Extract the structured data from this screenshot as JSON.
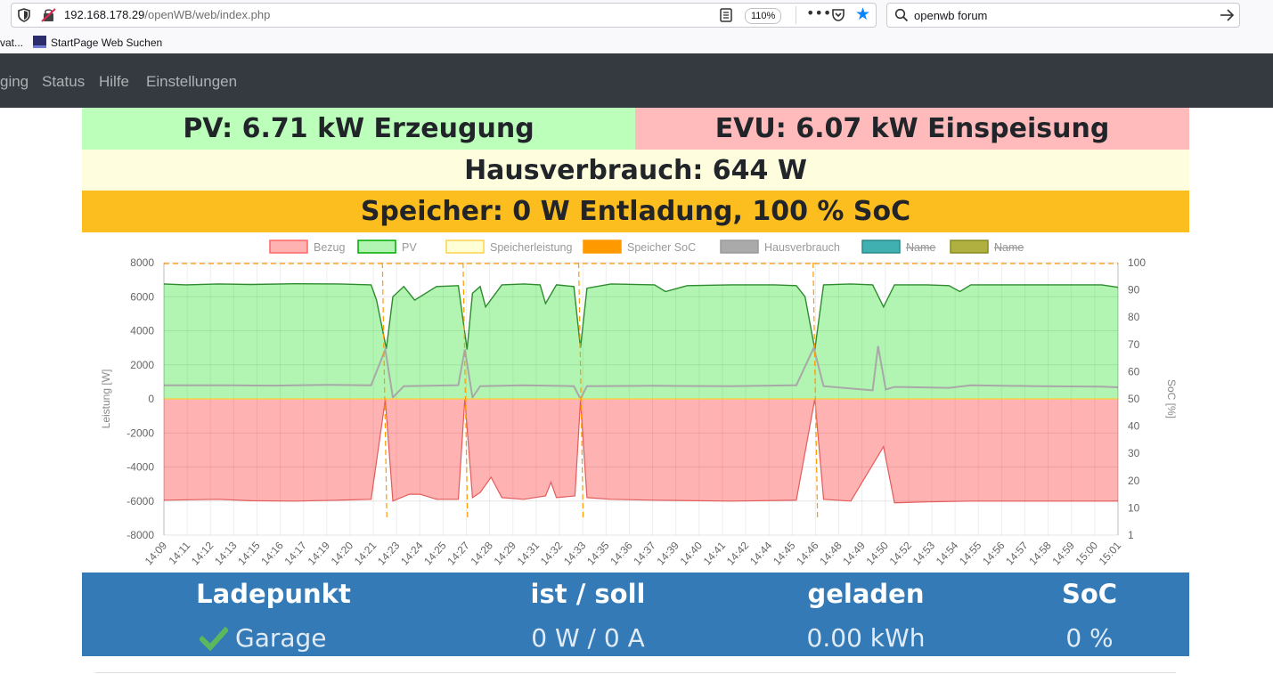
{
  "browser": {
    "url_host": "192.168.178.29",
    "url_path": "/openWB/web/index.php",
    "zoom": "110%",
    "search_text": "openwb forum",
    "bookmarks": [
      "vat...",
      "StartPage Web Suchen"
    ],
    "accent_color": "#0a84ff"
  },
  "nav": {
    "items": [
      "ging",
      "Status",
      "Hilfe",
      "Einstellungen"
    ]
  },
  "summary": {
    "pv": "PV: 6.71 kW Erzeugung",
    "evu": "EVU: 6.07 kW Einspeisung",
    "haus": "Hausverbrauch: 644 W",
    "speicher": "Speicher: 0 W Entladung, 100 % SoC",
    "colors": {
      "pv": "#bbffbb",
      "evu": "#ffbbbb",
      "haus": "#fefedf",
      "speicher": "#fcbe1e"
    }
  },
  "chart_data": {
    "type": "area",
    "legend": [
      {
        "label": "Bezug",
        "color": "#ff6666",
        "fill": "rgba(255,0,0,0.3)",
        "hidden": false
      },
      {
        "label": "PV",
        "color": "#00aa00",
        "fill": "rgba(0,220,0,0.3)",
        "hidden": false
      },
      {
        "label": "Speicherleistung",
        "color": "#fcd34d",
        "fill": "rgba(255,255,150,0.4)",
        "hidden": false
      },
      {
        "label": "Speicher SoC",
        "color": "#ff9900",
        "fill": "#ff9900",
        "hidden": false
      },
      {
        "label": "Hausverbrauch",
        "color": "#999999",
        "fill": "#aaaaaa",
        "hidden": false
      },
      {
        "label": "Name",
        "color": "#2a8a8a",
        "fill": "#40b0b0",
        "hidden": true
      },
      {
        "label": "Name",
        "color": "#8a8a20",
        "fill": "#b0b040",
        "hidden": true
      }
    ],
    "legend_position": "top",
    "ylabel": "Leistung [W]",
    "y2label": "SoC [%]",
    "ylim": [
      -8000,
      8000
    ],
    "y_ticks": [
      "8000",
      "6000",
      "4000",
      "2000",
      "0",
      "-2000",
      "-4000",
      "-6000",
      "-8000"
    ],
    "y2_ticks": [
      "100",
      "90",
      "80",
      "70",
      "60",
      "50",
      "40",
      "30",
      "20",
      "10",
      "1"
    ],
    "x_ticks": [
      "14:09",
      "14:11",
      "14:12",
      "14:13",
      "14:15",
      "14:16",
      "14:17",
      "14:19",
      "14:20",
      "14:21",
      "14:23",
      "14:24",
      "14:25",
      "14:27",
      "14:28",
      "14:29",
      "14:31",
      "14:32",
      "14:33",
      "14:35",
      "14:36",
      "14:37",
      "14:39",
      "14:40",
      "14:41",
      "14:42",
      "14:44",
      "14:45",
      "14:46",
      "14:48",
      "14:49",
      "14:50",
      "14:52",
      "14:53",
      "14:54",
      "14:55",
      "14:56",
      "14:57",
      "14:58",
      "14:59",
      "15:00",
      "15:01"
    ],
    "x_minutes": [
      0,
      53
    ],
    "series": [
      {
        "name": "PV",
        "values": [
          [
            0,
            6750
          ],
          [
            2,
            6700
          ],
          [
            5,
            6750
          ],
          [
            8,
            6720
          ],
          [
            12,
            6760
          ],
          [
            16,
            6750
          ],
          [
            19,
            6700
          ],
          [
            19.5,
            5800
          ],
          [
            20.4,
            2950
          ],
          [
            21,
            6000
          ],
          [
            22,
            6600
          ],
          [
            23,
            5800
          ],
          [
            25,
            6600
          ],
          [
            27,
            6650
          ],
          [
            27.8,
            2900
          ],
          [
            28.3,
            6200
          ],
          [
            29,
            6600
          ],
          [
            29.5,
            5400
          ],
          [
            31,
            6700
          ],
          [
            33,
            6750
          ],
          [
            34.5,
            6700
          ],
          [
            35,
            5600
          ],
          [
            36,
            6700
          ],
          [
            37.6,
            6600
          ],
          [
            38.2,
            3000
          ],
          [
            38.8,
            6500
          ],
          [
            41,
            6750
          ],
          [
            45,
            6700
          ],
          [
            46,
            6300
          ],
          [
            48,
            6650
          ],
          [
            52,
            6700
          ],
          [
            56,
            6700
          ],
          [
            58,
            6650
          ],
          [
            58.8,
            6000
          ],
          [
            59.7,
            2900
          ],
          [
            60.5,
            6700
          ],
          [
            63,
            6750
          ],
          [
            65,
            6700
          ],
          [
            66,
            5400
          ],
          [
            67,
            6700
          ],
          [
            70,
            6700
          ],
          [
            72,
            6650
          ],
          [
            73,
            6300
          ],
          [
            74,
            6700
          ],
          [
            80,
            6700
          ],
          [
            86,
            6700
          ],
          [
            87.5,
            6550
          ]
        ]
      },
      {
        "name": "Bezug",
        "values": [
          [
            0,
            -5950
          ],
          [
            5,
            -5900
          ],
          [
            8,
            -5980
          ],
          [
            12,
            -6000
          ],
          [
            16,
            -5950
          ],
          [
            19,
            -5900
          ],
          [
            20.3,
            -50
          ],
          [
            21,
            -6000
          ],
          [
            22.5,
            -5600
          ],
          [
            23.5,
            -5600
          ],
          [
            25,
            -5900
          ],
          [
            27,
            -5900
          ],
          [
            27.6,
            0
          ],
          [
            28.3,
            -5800
          ],
          [
            29,
            -5500
          ],
          [
            30,
            -4600
          ],
          [
            31,
            -5800
          ],
          [
            33,
            -5900
          ],
          [
            35,
            -5700
          ],
          [
            35.5,
            -4900
          ],
          [
            36,
            -5800
          ],
          [
            37.7,
            -5700
          ],
          [
            38.2,
            -100
          ],
          [
            38.8,
            -5800
          ],
          [
            41,
            -5900
          ],
          [
            45,
            -5950
          ],
          [
            52,
            -6000
          ],
          [
            58,
            -5950
          ],
          [
            59.7,
            0
          ],
          [
            60.5,
            -5900
          ],
          [
            63,
            -6000
          ],
          [
            66,
            -2800
          ],
          [
            67,
            -6100
          ],
          [
            70,
            -6050
          ],
          [
            74,
            -6000
          ],
          [
            80,
            -6000
          ],
          [
            86,
            -6000
          ],
          [
            87.5,
            -6000
          ]
        ]
      },
      {
        "name": "Hausverbrauch",
        "values": [
          [
            0,
            800
          ],
          [
            5,
            800
          ],
          [
            10,
            780
          ],
          [
            15,
            820
          ],
          [
            19,
            800
          ],
          [
            20.3,
            2900
          ],
          [
            21,
            80
          ],
          [
            22,
            750
          ],
          [
            27,
            800
          ],
          [
            27.6,
            2900
          ],
          [
            28.3,
            80
          ],
          [
            29,
            750
          ],
          [
            33,
            800
          ],
          [
            37.6,
            750
          ],
          [
            38.2,
            0
          ],
          [
            38.8,
            750
          ],
          [
            45,
            770
          ],
          [
            52,
            740
          ],
          [
            58,
            800
          ],
          [
            59.6,
            3000
          ],
          [
            60.5,
            750
          ],
          [
            65,
            500
          ],
          [
            65.5,
            3100
          ],
          [
            66.2,
            550
          ],
          [
            67,
            700
          ],
          [
            72,
            650
          ],
          [
            74,
            800
          ],
          [
            80,
            750
          ],
          [
            86,
            720
          ],
          [
            87.5,
            680
          ]
        ]
      },
      {
        "name": "Speicher SoC",
        "values": [
          [
            0,
            100
          ],
          [
            87.5,
            100
          ]
        ]
      }
    ],
    "grid": true
  },
  "ladepunkt": {
    "headers": [
      "Ladepunkt",
      "ist / soll",
      "geladen",
      "SoC"
    ],
    "row": {
      "name": "Garage",
      "ist_soll": "0 W / 0 A",
      "geladen": "0.00 kWh",
      "soc": "0 %"
    },
    "status_icon": "check-icon",
    "bg_color": "#337ab7"
  }
}
